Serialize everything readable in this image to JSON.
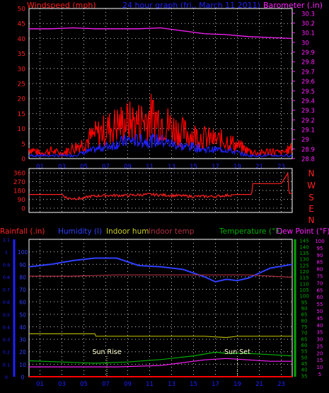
{
  "header": {
    "left_label": "Windspeed (mph)",
    "center_label": "24 hour graph (fri., March 11 2011)",
    "right_label": "Barometer (.in)"
  },
  "compass": [
    "N",
    "W",
    "S",
    "E",
    "N"
  ],
  "bottom_header": {
    "rain": "Rainfall (.in)",
    "humidity": "Humidity (l)",
    "indoor_hum": "Indoor hum",
    "indoor_temp": "Indoor temp",
    "temperature": "Temperature (°F)",
    "dew_point": "Dew Point (°F)"
  },
  "annotations": {
    "sun_rise": "Sun Rise",
    "sun_set": "Sun Set"
  },
  "colors": {
    "background": "#000000",
    "frame": "#ffffff",
    "grid": "#ffffff",
    "wind_gust": "#ff0000",
    "wind_avg": "#2020ff",
    "barometer": "#ff20ff",
    "direction": "#ff2020",
    "humidity": "#3040ff",
    "indoor_hum": "#b0b000",
    "indoor_temp": "#b03040",
    "temperature": "#00b000",
    "dew_point": "#ff20ff",
    "rain": "#ff0000",
    "rain_axis": "#2020ff",
    "hum_axis": "#3040ff",
    "temp_axis": "#00aa00",
    "dew_axis": "#ff20ff",
    "sun_marker": "#ffffaa"
  },
  "chart_data": [
    {
      "type": "line",
      "id": "wind_baro",
      "x_ticks": [
        "01",
        "03",
        "05",
        "07",
        "09",
        "11",
        "13",
        "15",
        "17",
        "19",
        "21",
        "23"
      ],
      "left_axis": {
        "label": "Windspeed (mph)",
        "ticks": [
          "0",
          "5",
          "10",
          "15",
          "20",
          "25",
          "30",
          "35",
          "40",
          "45",
          "50"
        ],
        "ylim": [
          0,
          50
        ]
      },
      "right_axis": {
        "label": "Barometer (.in)",
        "ticks": [
          "28.8",
          "28.9",
          "29",
          "29.1",
          "29.2",
          "29.3",
          "29.4",
          "29.5",
          "29.6",
          "29.7",
          "29.8",
          "29.9",
          "30",
          "30.1",
          "30.2",
          "30.3"
        ],
        "ylim": [
          28.8,
          30.35
        ]
      },
      "series": [
        {
          "name": "Gust",
          "axis": "left",
          "x": [
            0,
            1,
            2,
            3,
            4,
            5,
            6,
            7,
            8,
            9,
            10,
            11,
            12,
            13,
            14,
            15,
            16,
            17,
            18,
            19,
            20,
            21,
            22,
            23,
            24
          ],
          "y": [
            4,
            2,
            3,
            2,
            4,
            6,
            9,
            11,
            13,
            14,
            14,
            16,
            15,
            12,
            10,
            9,
            8,
            7,
            7,
            5,
            3,
            2,
            3,
            2,
            4
          ]
        },
        {
          "name": "Average",
          "axis": "left",
          "x": [
            0,
            1,
            2,
            3,
            4,
            5,
            6,
            7,
            8,
            9,
            10,
            11,
            12,
            13,
            14,
            15,
            16,
            17,
            18,
            19,
            20,
            21,
            22,
            23,
            24
          ],
          "y": [
            1,
            1,
            1,
            1,
            1,
            2,
            3,
            4,
            5,
            6,
            6,
            6,
            6,
            5,
            4,
            4,
            3,
            3,
            3,
            2,
            1,
            1,
            1,
            1,
            1
          ]
        },
        {
          "name": "Barometer",
          "axis": "right",
          "x": [
            0,
            2,
            4,
            6,
            8,
            10,
            12,
            14,
            16,
            18,
            20,
            22,
            24
          ],
          "y": [
            30.14,
            30.14,
            30.15,
            30.14,
            30.14,
            30.14,
            30.15,
            30.12,
            30.09,
            30.08,
            30.06,
            30.05,
            30.04
          ]
        }
      ]
    },
    {
      "type": "line",
      "id": "direction",
      "x_ticks": [],
      "left_axis": {
        "ticks": [
          "0",
          "90",
          "180",
          "270",
          "360"
        ],
        "ylim": [
          0,
          360
        ]
      },
      "series": [
        {
          "name": "Direction",
          "x": [
            0,
            3,
            3.5,
            5,
            5.5,
            7,
            9,
            11,
            13,
            15,
            17,
            19,
            20.3,
            20.4,
            23,
            23.6,
            23.7
          ],
          "y": [
            140,
            140,
            100,
            100,
            120,
            130,
            130,
            140,
            130,
            120,
            120,
            140,
            140,
            250,
            250,
            355,
            150
          ]
        }
      ]
    },
    {
      "type": "line",
      "id": "temp_hum",
      "x_ticks": [
        "01",
        "03",
        "05",
        "07",
        "09",
        "11",
        "13",
        "15",
        "17",
        "19",
        "21",
        "23"
      ],
      "rain_axis": {
        "ticks": [
          "0",
          "0.1",
          "0.2",
          "0.3",
          "0.4",
          "0.5",
          "0.6",
          "0.7",
          "0.8",
          "0.9",
          "1",
          "1.1"
        ],
        "ylim": [
          0,
          1.1
        ]
      },
      "hum_axis": {
        "ticks": [
          "0",
          "10",
          "20",
          "30",
          "40",
          "50",
          "60",
          "70",
          "80",
          "90",
          "100"
        ],
        "ylim": [
          0,
          110
        ]
      },
      "temp_axis": {
        "ticks": [
          "35",
          "40",
          "45",
          "50",
          "55",
          "60",
          "65",
          "70",
          "75",
          "80",
          "85",
          "90",
          "95",
          "100",
          "105",
          "110",
          "115",
          "120",
          "125",
          "130",
          "135",
          "140",
          "145"
        ],
        "ylim": [
          34,
          146
        ]
      },
      "dew_axis": {
        "ticks": [
          "5",
          "10",
          "15",
          "20",
          "25",
          "30",
          "35",
          "40",
          "45",
          "50",
          "55",
          "60",
          "65",
          "70",
          "75",
          "80",
          "85",
          "90",
          "95",
          "100"
        ],
        "ylim": [
          3,
          101
        ]
      },
      "series": [
        {
          "name": "Humidity",
          "axis": "hum",
          "x": [
            0,
            2,
            4,
            6,
            8,
            10,
            12,
            14,
            16,
            17,
            18,
            19,
            20,
            21,
            22,
            24
          ],
          "y": [
            88,
            90,
            93,
            95,
            95,
            89,
            88,
            86,
            80,
            76,
            78,
            77,
            79,
            83,
            87,
            90
          ]
        },
        {
          "name": "Indoor temp",
          "axis": "temp",
          "x": [
            0,
            4,
            8,
            12,
            16,
            20,
            24
          ],
          "y": [
            116,
            116,
            117,
            117,
            117,
            117,
            115
          ]
        },
        {
          "name": "Indoor hum",
          "axis": "temp",
          "x": [
            0,
            6,
            6.1,
            12,
            16,
            18,
            19,
            24
          ],
          "y": [
            69,
            69,
            67,
            67,
            67,
            66,
            67,
            67
          ]
        },
        {
          "name": "Temperature",
          "axis": "temp",
          "x": [
            0,
            3,
            6,
            9,
            12,
            15,
            17,
            18,
            20,
            22,
            24
          ],
          "y": [
            47,
            46,
            45,
            46,
            48,
            51,
            54,
            53,
            53,
            52,
            51
          ]
        },
        {
          "name": "Dew Point",
          "axis": "dew",
          "x": [
            0,
            4,
            8,
            12,
            14,
            16,
            18,
            20,
            22,
            24
          ],
          "y": [
            10,
            10,
            10,
            11,
            13,
            15,
            16,
            15,
            14,
            14
          ]
        },
        {
          "name": "Rainfall",
          "axis": "rain",
          "x": [
            0,
            24
          ],
          "y": [
            0,
            0
          ]
        }
      ],
      "sun_rise_x": 7.1,
      "sun_set_x": 19.0
    }
  ]
}
